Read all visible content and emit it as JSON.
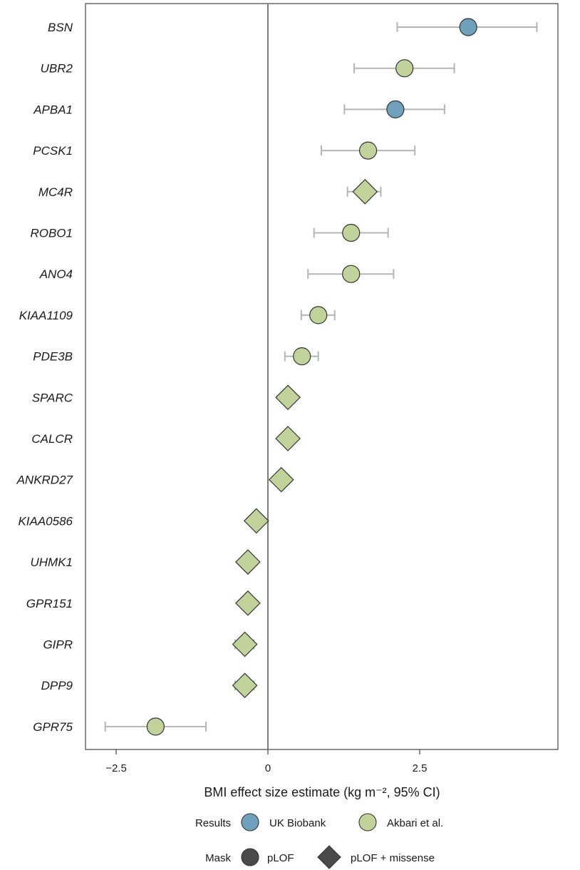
{
  "chart_data": {
    "type": "scatter",
    "subtype": "forest-plot",
    "xlabel": "BMI effect size estimate (kg m⁻², 95% CI)",
    "xlim": [
      -3.0,
      4.8
    ],
    "xticks": [
      -2.5,
      0,
      2.5
    ],
    "xtick_labels": [
      "−2.5",
      "0",
      "2.5"
    ],
    "reference_line_x": 0,
    "grid": false,
    "legend_position": "bottom",
    "genes": [
      {
        "gene": "BSN",
        "estimate": 3.3,
        "ci_low": 2.13,
        "ci_high": 4.43,
        "result": "UK Biobank",
        "mask": "pLOF"
      },
      {
        "gene": "UBR2",
        "estimate": 2.25,
        "ci_low": 1.42,
        "ci_high": 3.07,
        "result": "Akbari et al.",
        "mask": "pLOF"
      },
      {
        "gene": "APBA1",
        "estimate": 2.1,
        "ci_low": 1.26,
        "ci_high": 2.91,
        "result": "UK Biobank",
        "mask": "pLOF"
      },
      {
        "gene": "PCSK1",
        "estimate": 1.65,
        "ci_low": 0.88,
        "ci_high": 2.42,
        "result": "Akbari et al.",
        "mask": "pLOF"
      },
      {
        "gene": "MC4R",
        "estimate": 1.6,
        "ci_low": 1.31,
        "ci_high": 1.86,
        "result": "Akbari et al.",
        "mask": "pLOF + missense"
      },
      {
        "gene": "ROBO1",
        "estimate": 1.37,
        "ci_low": 0.76,
        "ci_high": 1.98,
        "result": "Akbari et al.",
        "mask": "pLOF"
      },
      {
        "gene": "ANO4",
        "estimate": 1.37,
        "ci_low": 0.66,
        "ci_high": 2.07,
        "result": "Akbari et al.",
        "mask": "pLOF"
      },
      {
        "gene": "KIAA1109",
        "estimate": 0.83,
        "ci_low": 0.55,
        "ci_high": 1.1,
        "result": "Akbari et al.",
        "mask": "pLOF"
      },
      {
        "gene": "PDE3B",
        "estimate": 0.56,
        "ci_low": 0.28,
        "ci_high": 0.83,
        "result": "Akbari et al.",
        "mask": "pLOF"
      },
      {
        "gene": "SPARC",
        "estimate": 0.33,
        "ci_low": 0.33,
        "ci_high": 0.33,
        "result": "Akbari et al.",
        "mask": "pLOF + missense"
      },
      {
        "gene": "CALCR",
        "estimate": 0.33,
        "ci_low": 0.33,
        "ci_high": 0.33,
        "result": "Akbari et al.",
        "mask": "pLOF + missense"
      },
      {
        "gene": "ANKRD27",
        "estimate": 0.22,
        "ci_low": 0.22,
        "ci_high": 0.22,
        "result": "Akbari et al.",
        "mask": "pLOF + missense"
      },
      {
        "gene": "KIAA0586",
        "estimate": -0.19,
        "ci_low": -0.25,
        "ci_high": -0.12,
        "result": "Akbari et al.",
        "mask": "pLOF + missense"
      },
      {
        "gene": "UHMK1",
        "estimate": -0.33,
        "ci_low": -0.33,
        "ci_high": -0.33,
        "result": "Akbari et al.",
        "mask": "pLOF + missense"
      },
      {
        "gene": "GPR151",
        "estimate": -0.33,
        "ci_low": -0.33,
        "ci_high": -0.33,
        "result": "Akbari et al.",
        "mask": "pLOF + missense"
      },
      {
        "gene": "GIPR",
        "estimate": -0.38,
        "ci_low": -0.54,
        "ci_high": -0.23,
        "result": "Akbari et al.",
        "mask": "pLOF + missense"
      },
      {
        "gene": "DPP9",
        "estimate": -0.38,
        "ci_low": -0.54,
        "ci_high": -0.23,
        "result": "Akbari et al.",
        "mask": "pLOF + missense"
      },
      {
        "gene": "GPR75",
        "estimate": -1.85,
        "ci_low": -2.68,
        "ci_high": -1.02,
        "result": "Akbari et al.",
        "mask": "pLOF"
      }
    ]
  },
  "legend": {
    "results_title": "Results",
    "results_items": [
      {
        "label": "UK Biobank",
        "color": "#6fa1bd"
      },
      {
        "label": "Akbari et al.",
        "color": "#c1d39a"
      }
    ],
    "mask_title": "Mask",
    "mask_items": [
      {
        "label": "pLOF",
        "shape": "circle",
        "color": "#4a4a4a"
      },
      {
        "label": "pLOF + missense",
        "shape": "diamond",
        "color": "#4a4a4a"
      }
    ]
  },
  "colors": {
    "uk_biobank": "#6fa1bd",
    "akbari": "#c1d39a",
    "whisker": "#b5b5b5",
    "outline": "#333333",
    "zero_line": "#7a7a7a"
  }
}
